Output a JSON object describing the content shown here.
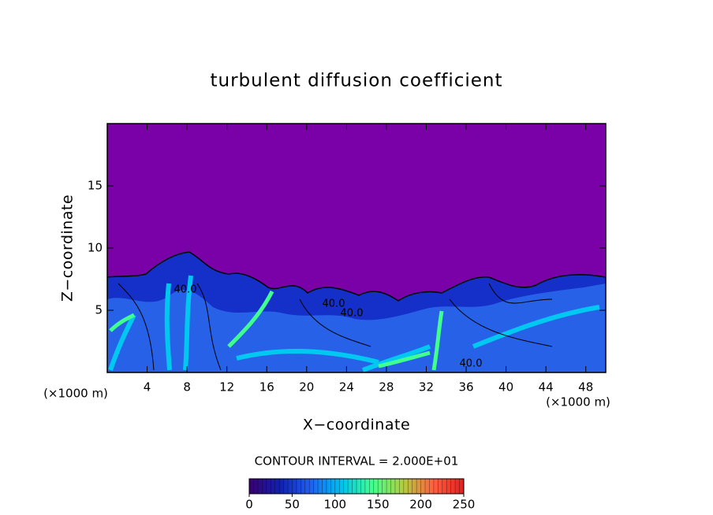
{
  "chart_data": {
    "type": "contour",
    "title": "turbulent diffusion coefficient",
    "x_label": "X−coordinate",
    "y_label": "Z−coordinate",
    "x_unit_labels": [
      "(×1000 m)",
      "(×1000 m)"
    ],
    "xlim": [
      0,
      50
    ],
    "xticks": [
      4,
      8,
      12,
      16,
      20,
      24,
      28,
      32,
      36,
      40,
      44,
      48
    ],
    "ylim": [
      0,
      20
    ],
    "yticks": [
      5,
      10,
      15
    ],
    "contour_interval": "CONTOUR INTERVAL = 2.000E+01",
    "contour_labels": [
      "40.0",
      "40.0",
      "40.0",
      "40.0"
    ],
    "colorbar": {
      "lim": [
        0,
        250
      ],
      "ticks": [
        0,
        50,
        100,
        150,
        200,
        250
      ],
      "colors": [
        "#3a0070",
        "#1020b0",
        "#2060f0",
        "#00c0f0",
        "#40ff90",
        "#b0d040",
        "#ff6040",
        "#e02020"
      ]
    }
  }
}
